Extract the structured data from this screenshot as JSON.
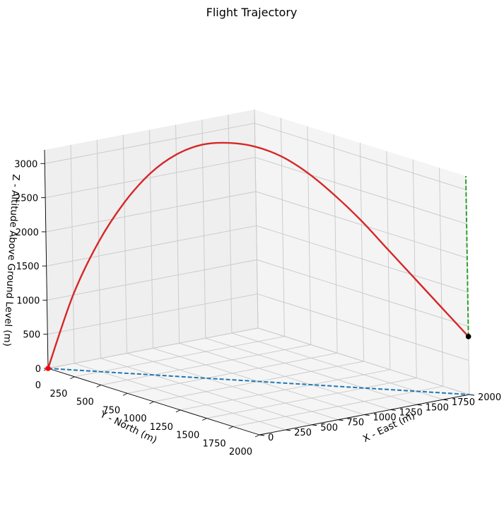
{
  "chart_data": {
    "type": "line",
    "projection": "3d",
    "title": "Flight Trajectory",
    "xlabel": "X - East (m)",
    "ylabel": "Y - North (m)",
    "zlabel": "Z - Altitude Above Ground Level (m)",
    "xlim": [
      0,
      2000
    ],
    "ylim": [
      0,
      2000
    ],
    "zlim": [
      0,
      3200
    ],
    "x_ticks": [
      "0",
      "250",
      "500",
      "750",
      "1000",
      "1250",
      "1500",
      "1750",
      "2000"
    ],
    "y_ticks": [
      "0",
      "250",
      "500",
      "750",
      "1000",
      "1250",
      "1500",
      "1750",
      "2000"
    ],
    "z_ticks": [
      "0",
      "500",
      "1000",
      "1500",
      "2000",
      "2500",
      "3000"
    ],
    "grid": true,
    "colors": {
      "trajectory": "#d62728",
      "ground_track": "#1f77b4",
      "vertical_drop": "#2ca02c",
      "launch_point": "#ff0000",
      "landing_point": "#000000"
    },
    "series": [
      {
        "x": [
          0,
          125,
          250,
          375,
          500,
          625,
          750,
          875,
          1000,
          1125,
          1250,
          1375,
          1500,
          1625,
          1750,
          1875,
          2000
        ],
        "y": [
          0,
          125,
          250,
          375,
          500,
          625,
          750,
          875,
          1000,
          1125,
          1250,
          1375,
          1500,
          1625,
          1750,
          1875,
          2000
        ],
        "z": [
          0,
          1100,
          1900,
          2500,
          2950,
          3250,
          3420,
          3470,
          3440,
          3320,
          3100,
          2800,
          2450,
          2050,
          1650,
          1250,
          850
        ]
      }
    ],
    "ground_track": {
      "from": [
        0,
        0,
        0
      ],
      "to": [
        2000,
        2000,
        0
      ]
    },
    "vertical_drop": {
      "from": [
        2000,
        2000,
        850
      ],
      "to": [
        2000,
        2000,
        3200
      ]
    },
    "launch_point": [
      0,
      0,
      0
    ],
    "landing_point": [
      2000,
      2000,
      850
    ]
  }
}
